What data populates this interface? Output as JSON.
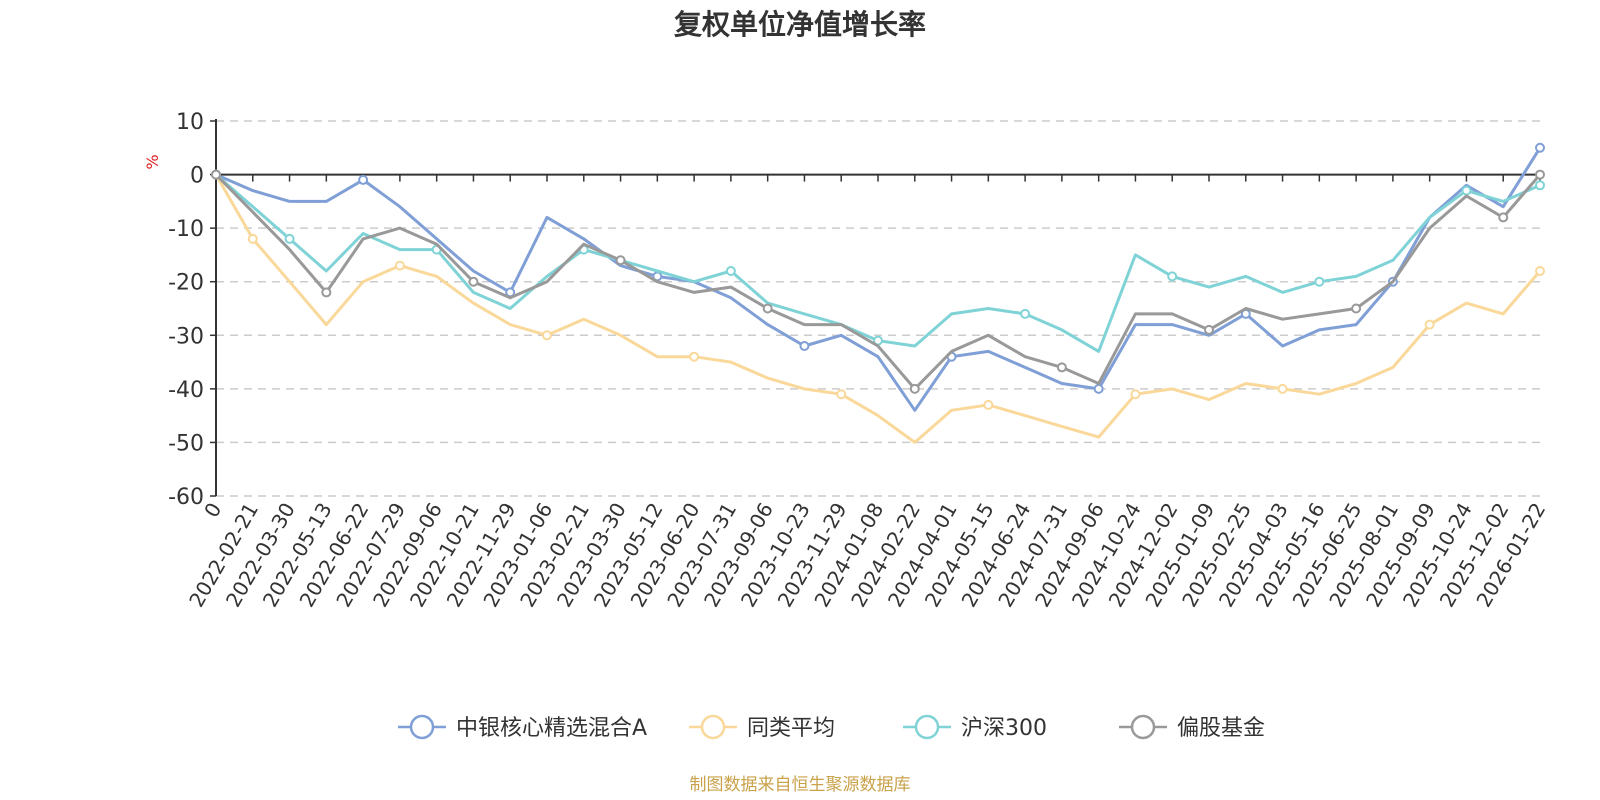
{
  "chart_data": {
    "type": "line",
    "title": "复权单位净值增长率",
    "ylabel": "%",
    "xlabel": "",
    "ylim": [
      -60,
      10
    ],
    "yticks": [
      10,
      0,
      -10,
      -20,
      -30,
      -40,
      -50,
      -60
    ],
    "categories": [
      "0",
      "2022-02-21",
      "2022-03-30",
      "2022-05-13",
      "2022-06-22",
      "2022-07-29",
      "2022-09-06",
      "2022-10-21",
      "2022-11-29",
      "2023-01-06",
      "2023-02-21",
      "2023-03-30",
      "2023-05-12",
      "2023-06-20",
      "2023-07-31",
      "2023-09-06",
      "2023-10-23",
      "2023-11-29",
      "2024-01-08",
      "2024-02-22",
      "2024-04-01",
      "2024-05-15",
      "2024-06-24",
      "2024-07-31",
      "2024-09-06",
      "2024-10-24",
      "2024-12-02",
      "2025-01-09",
      "2025-02-25",
      "2025-04-03",
      "2025-05-16",
      "2025-06-25",
      "2025-08-01",
      "2025-09-09",
      "2025-10-24",
      "2025-12-02",
      "2026-01-22"
    ],
    "series": [
      {
        "name": "中银核心精选混合A",
        "color": "#7f9fd6",
        "values": [
          0,
          -3,
          -5,
          -5,
          -1,
          -6,
          -12,
          -18,
          -22,
          -8,
          -12,
          -17,
          -19,
          -20,
          -23,
          -28,
          -32,
          -30,
          -34,
          -44,
          -34,
          -33,
          -36,
          -39,
          -40,
          -28,
          -28,
          -30,
          -26,
          -32,
          -29,
          -28,
          -20,
          -8,
          -2,
          -6,
          5
        ]
      },
      {
        "name": "同类平均",
        "color": "#f9d89a",
        "values": [
          0,
          -12,
          -20,
          -28,
          -20,
          -17,
          -19,
          -24,
          -28,
          -30,
          -27,
          -30,
          -34,
          -34,
          -35,
          -38,
          -40,
          -41,
          -45,
          -50,
          -44,
          -43,
          -45,
          -47,
          -49,
          -41,
          -40,
          -42,
          -39,
          -40,
          -41,
          -39,
          -36,
          -28,
          -24,
          -26,
          -18
        ]
      },
      {
        "name": "沪深300",
        "color": "#7fd3d6",
        "values": [
          0,
          -6,
          -12,
          -18,
          -11,
          -14,
          -14,
          -22,
          -25,
          -19,
          -14,
          -16,
          -18,
          -20,
          -18,
          -24,
          -26,
          -28,
          -31,
          -32,
          -26,
          -25,
          -26,
          -29,
          -33,
          -15,
          -19,
          -21,
          -19,
          -22,
          -20,
          -19,
          -16,
          -8,
          -3,
          -5,
          -2
        ]
      },
      {
        "name": "偏股基金",
        "color": "#999999",
        "values": [
          0,
          -7,
          -14,
          -22,
          -12,
          -10,
          -13,
          -20,
          -23,
          -20,
          -13,
          -16,
          -20,
          -22,
          -21,
          -25,
          -28,
          -28,
          -32,
          -40,
          -33,
          -30,
          -34,
          -36,
          -39,
          -26,
          -26,
          -29,
          -25,
          -27,
          -26,
          -25,
          -20,
          -10,
          -4,
          -8,
          0
        ]
      }
    ]
  },
  "legend": {
    "items": [
      {
        "label": "中银核心精选混合A",
        "color": "#7f9fd6"
      },
      {
        "label": "同类平均",
        "color": "#f9d89a"
      },
      {
        "label": "沪深300",
        "color": "#7fd3d6"
      },
      {
        "label": "偏股基金",
        "color": "#999999"
      }
    ]
  },
  "source_note": "制图数据来自恒生聚源数据库"
}
